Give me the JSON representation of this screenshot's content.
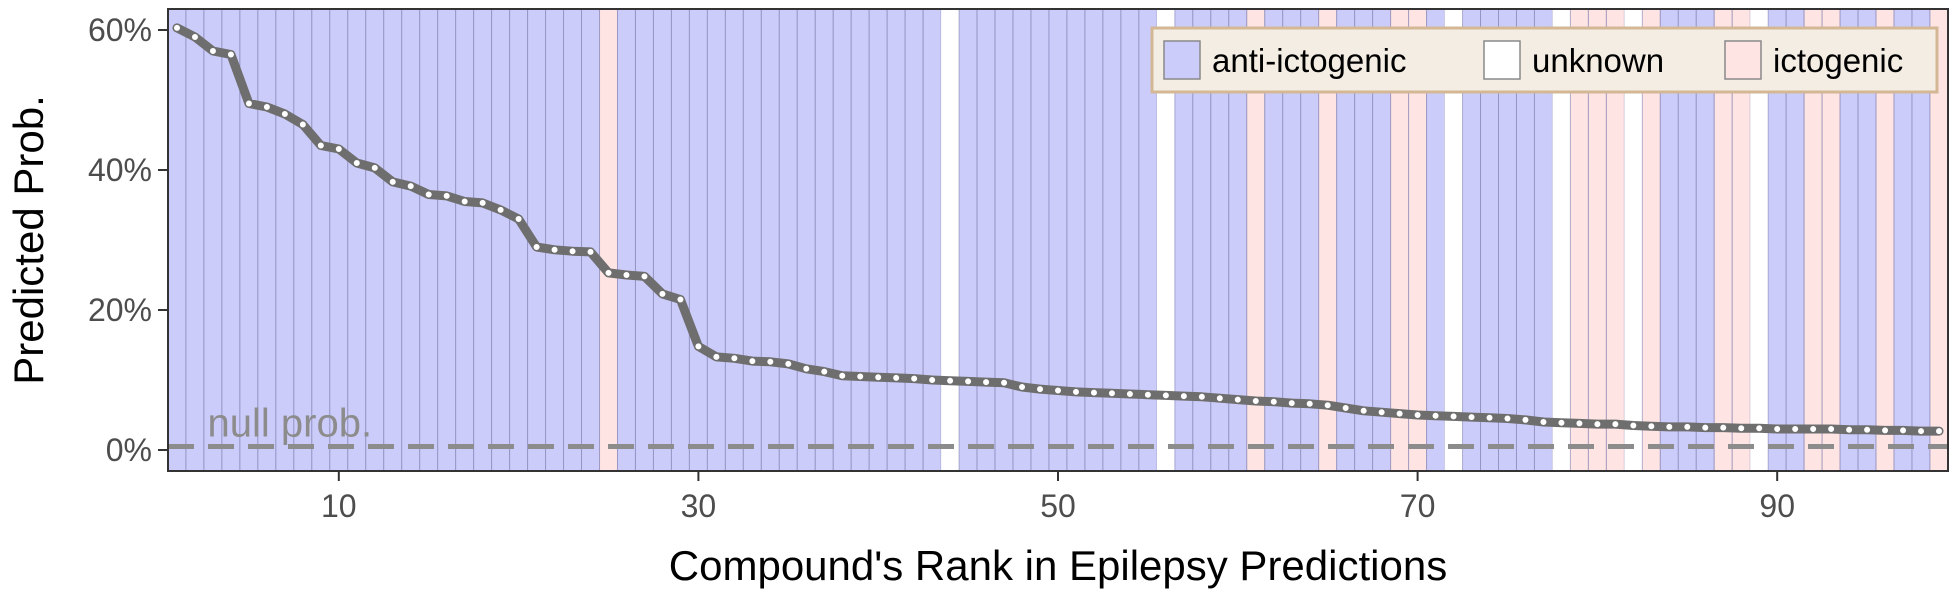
{
  "chart_data": {
    "type": "line",
    "xlabel": "Compound's Rank in Epilepsy Predictions",
    "ylabel": "Predicted Prob.",
    "xlim": [
      0.5,
      99.5
    ],
    "ylim": [
      -3,
      63
    ],
    "x_ticks": [
      10,
      30,
      50,
      70,
      90
    ],
    "y_ticks": [
      0,
      20,
      40,
      60
    ],
    "y_tick_format": "percent",
    "grid": false,
    "null_prob": 0.5,
    "null_label": "null prob.",
    "legend": {
      "placement": "top-right",
      "entries": [
        {
          "key": "anti",
          "label": "anti-ictogenic",
          "color": "#ccccfa"
        },
        {
          "key": "unknown",
          "label": "unknown",
          "color": "#ffffff"
        },
        {
          "key": "icto",
          "label": "ictogenic",
          "color": "#ffe4e4"
        }
      ]
    },
    "colors": {
      "line": "#6e6e6e",
      "point": "#ffffff",
      "null_line": "#8c8c8c",
      "band_border": "#8080b0"
    },
    "ranks": [
      1,
      2,
      3,
      4,
      5,
      6,
      7,
      8,
      9,
      10,
      11,
      12,
      13,
      14,
      15,
      16,
      17,
      18,
      19,
      20,
      21,
      22,
      23,
      24,
      25,
      26,
      27,
      28,
      29,
      30,
      31,
      32,
      33,
      34,
      35,
      36,
      37,
      38,
      39,
      40,
      41,
      42,
      43,
      44,
      45,
      46,
      47,
      48,
      49,
      50,
      51,
      52,
      53,
      54,
      55,
      56,
      57,
      58,
      59,
      60,
      61,
      62,
      63,
      64,
      65,
      66,
      67,
      68,
      69,
      70,
      71,
      72,
      73,
      74,
      75,
      76,
      77,
      78,
      79,
      80,
      81,
      82,
      83,
      84,
      85,
      86,
      87,
      88,
      89,
      90,
      91,
      92,
      93,
      94,
      95,
      96,
      97,
      98,
      99
    ],
    "values": [
      60.3,
      59.0,
      57.0,
      56.5,
      49.5,
      49.0,
      48.0,
      46.5,
      43.5,
      43.0,
      41.0,
      40.3,
      38.3,
      37.7,
      36.5,
      36.3,
      35.5,
      35.3,
      34.3,
      33.0,
      29.0,
      28.6,
      28.4,
      28.3,
      25.3,
      25.0,
      24.8,
      22.3,
      21.5,
      14.8,
      13.3,
      13.1,
      12.7,
      12.6,
      12.3,
      11.6,
      11.2,
      10.6,
      10.5,
      10.4,
      10.3,
      10.2,
      10.0,
      9.9,
      9.8,
      9.7,
      9.6,
      9.0,
      8.7,
      8.5,
      8.3,
      8.2,
      8.1,
      8.0,
      7.9,
      7.8,
      7.7,
      7.6,
      7.4,
      7.2,
      7.0,
      6.9,
      6.7,
      6.6,
      6.4,
      6.0,
      5.6,
      5.4,
      5.2,
      5.0,
      4.9,
      4.8,
      4.7,
      4.6,
      4.5,
      4.3,
      4.0,
      3.9,
      3.8,
      3.7,
      3.7,
      3.5,
      3.4,
      3.3,
      3.3,
      3.2,
      3.2,
      3.1,
      3.1,
      3.0,
      3.0,
      3.0,
      3.0,
      2.9,
      2.9,
      2.8,
      2.8,
      2.7,
      2.7
    ],
    "classes": [
      "anti",
      "anti",
      "anti",
      "anti",
      "anti",
      "anti",
      "anti",
      "anti",
      "anti",
      "anti",
      "anti",
      "anti",
      "anti",
      "anti",
      "anti",
      "anti",
      "anti",
      "anti",
      "anti",
      "anti",
      "anti",
      "anti",
      "anti",
      "anti",
      "icto",
      "anti",
      "anti",
      "anti",
      "anti",
      "anti",
      "anti",
      "anti",
      "anti",
      "anti",
      "anti",
      "anti",
      "anti",
      "anti",
      "anti",
      "anti",
      "anti",
      "anti",
      "anti",
      "unknown",
      "anti",
      "anti",
      "anti",
      "anti",
      "anti",
      "anti",
      "anti",
      "anti",
      "anti",
      "anti",
      "anti",
      "unknown",
      "anti",
      "anti",
      "anti",
      "anti",
      "icto",
      "anti",
      "anti",
      "anti",
      "icto",
      "anti",
      "anti",
      "anti",
      "icto",
      "icto",
      "anti",
      "unknown",
      "anti",
      "anti",
      "anti",
      "anti",
      "anti",
      "unknown",
      "icto",
      "icto",
      "icto",
      "unknown",
      "icto",
      "anti",
      "anti",
      "anti",
      "icto",
      "icto",
      "unknown",
      "anti",
      "anti",
      "icto",
      "icto",
      "anti",
      "anti",
      "icto",
      "anti",
      "anti",
      "icto"
    ]
  }
}
